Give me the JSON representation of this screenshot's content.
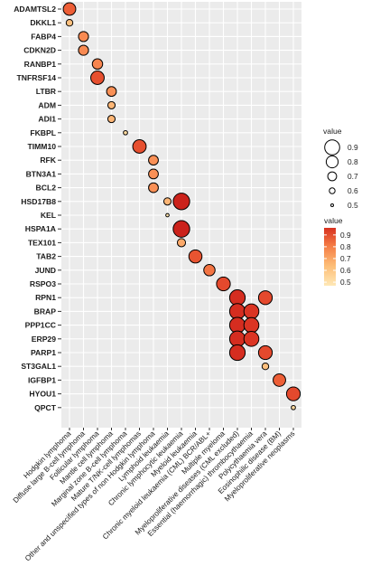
{
  "chart_data": {
    "type": "bubble",
    "title": "",
    "xlabel": "",
    "ylabel": "",
    "grid": true,
    "legend_position": "right",
    "genes": [
      "ADAMTSL2",
      "DKKL1",
      "FABP4",
      "CDKN2D",
      "RANBP1",
      "TNFRSF14",
      "LTBR",
      "ADM",
      "ADI1",
      "FKBPL",
      "TIMM10",
      "RFK",
      "BTN3A1",
      "BCL2",
      "HSD17B8",
      "KEL",
      "HSPA1A",
      "TEX101",
      "TAB2",
      "JUND",
      "RSPO3",
      "RPN1",
      "BRAP",
      "PPP1CC",
      "ERP29",
      "PARP1",
      "ST3GAL1",
      "IGFBP1",
      "HYOU1",
      "QPCT"
    ],
    "diseases": [
      "Hodgkin lymphoma",
      "Diffuse large B-cell lymphoma",
      "Follicular lymphoma",
      "Mantle cell lymphoma",
      "Marginal zone B-cell lymphoma",
      "Mature T/NK-cell lymphomas",
      "Other and unspecified types of non Hodgkin lymphoma",
      "Lymphoid leukaemia",
      "Chronic lymphocytic leukaemia",
      "Myeloid leukaemia",
      "Chronic myeloid leukaemia (CML) BCR/ABL+",
      "Multiple myeloma",
      "Myeloproliferative diseases (CML excluded)",
      "Essential (haemorrhagic) thrombocythaemia",
      "Polycythaemia vera",
      "Eosinophilic disease (BM)",
      "Myeloproliferative neoplasms"
    ],
    "points": [
      {
        "gene": "ADAMTSL2",
        "disease": "Hodgkin lymphoma",
        "value": 0.82
      },
      {
        "gene": "DKKL1",
        "disease": "Hodgkin lymphoma",
        "value": 0.63
      },
      {
        "gene": "FABP4",
        "disease": "Diffuse large B-cell lymphoma",
        "value": 0.74
      },
      {
        "gene": "CDKN2D",
        "disease": "Diffuse large B-cell lymphoma",
        "value": 0.74
      },
      {
        "gene": "RANBP1",
        "disease": "Follicular lymphoma",
        "value": 0.75
      },
      {
        "gene": "TNFRSF14",
        "disease": "Follicular lymphoma",
        "value": 0.85
      },
      {
        "gene": "LTBR",
        "disease": "Mantle cell lymphoma",
        "value": 0.73
      },
      {
        "gene": "ADM",
        "disease": "Mantle cell lymphoma",
        "value": 0.65
      },
      {
        "gene": "ADI1",
        "disease": "Mantle cell lymphoma",
        "value": 0.65
      },
      {
        "gene": "FKBPL",
        "disease": "Marginal zone B-cell lymphoma",
        "value": 0.55
      },
      {
        "gene": "TIMM10",
        "disease": "Mature T/NK-cell lymphomas",
        "value": 0.85
      },
      {
        "gene": "RFK",
        "disease": "Other and unspecified types of non Hodgkin lymphoma",
        "value": 0.73
      },
      {
        "gene": "BTN3A1",
        "disease": "Other and unspecified types of non Hodgkin lymphoma",
        "value": 0.73
      },
      {
        "gene": "BCL2",
        "disease": "Other and unspecified types of non Hodgkin lymphoma",
        "value": 0.73
      },
      {
        "gene": "HSD17B8",
        "disease": "Lymphoid leukaemia",
        "value": 0.65
      },
      {
        "gene": "HSD17B8",
        "disease": "Chronic lymphocytic leukaemia",
        "value": 0.95
      },
      {
        "gene": "KEL",
        "disease": "Lymphoid leukaemia",
        "value": 0.52
      },
      {
        "gene": "HSPA1A",
        "disease": "Chronic lymphocytic leukaemia",
        "value": 0.95
      },
      {
        "gene": "TEX101",
        "disease": "Chronic lymphocytic leukaemia",
        "value": 0.68
      },
      {
        "gene": "TAB2",
        "disease": "Myeloid leukaemia",
        "value": 0.84
      },
      {
        "gene": "JUND",
        "disease": "Chronic myeloid leukaemia (CML) BCR/ABL+",
        "value": 0.78
      },
      {
        "gene": "RSPO3",
        "disease": "Multiple myeloma",
        "value": 0.86
      },
      {
        "gene": "RPN1",
        "disease": "Myeloproliferative diseases (CML excluded)",
        "value": 0.92
      },
      {
        "gene": "RPN1",
        "disease": "Polycythaemia vera",
        "value": 0.86
      },
      {
        "gene": "BRAP",
        "disease": "Myeloproliferative diseases (CML excluded)",
        "value": 0.92
      },
      {
        "gene": "BRAP",
        "disease": "Essential (haemorrhagic) thrombocythaemia",
        "value": 0.9
      },
      {
        "gene": "PPP1CC",
        "disease": "Myeloproliferative diseases (CML excluded)",
        "value": 0.92
      },
      {
        "gene": "PPP1CC",
        "disease": "Essential (haemorrhagic) thrombocythaemia",
        "value": 0.9
      },
      {
        "gene": "ERP29",
        "disease": "Myeloproliferative diseases (CML excluded)",
        "value": 0.92
      },
      {
        "gene": "ERP29",
        "disease": "Essential (haemorrhagic) thrombocythaemia",
        "value": 0.9
      },
      {
        "gene": "PARP1",
        "disease": "Myeloproliferative diseases (CML excluded)",
        "value": 0.92
      },
      {
        "gene": "PARP1",
        "disease": "Polycythaemia vera",
        "value": 0.86
      },
      {
        "gene": "ST3GAL1",
        "disease": "Polycythaemia vera",
        "value": 0.63
      },
      {
        "gene": "IGFBP1",
        "disease": "Eosinophilic disease (BM)",
        "value": 0.82
      },
      {
        "gene": "HYOU1",
        "disease": "Myeloproliferative neoplasms",
        "value": 0.86
      },
      {
        "gene": "QPCT",
        "disease": "Myeloproliferative neoplasms",
        "value": 0.55
      }
    ],
    "size_legend": {
      "title": "value",
      "breaks": [
        0.9,
        0.8,
        0.7,
        0.6,
        0.5
      ]
    },
    "color_legend": {
      "title": "value",
      "breaks": [
        0.9,
        0.8,
        0.7,
        0.6,
        0.5
      ],
      "low_color": "#fee8b6",
      "high_color": "#d7301f"
    }
  }
}
